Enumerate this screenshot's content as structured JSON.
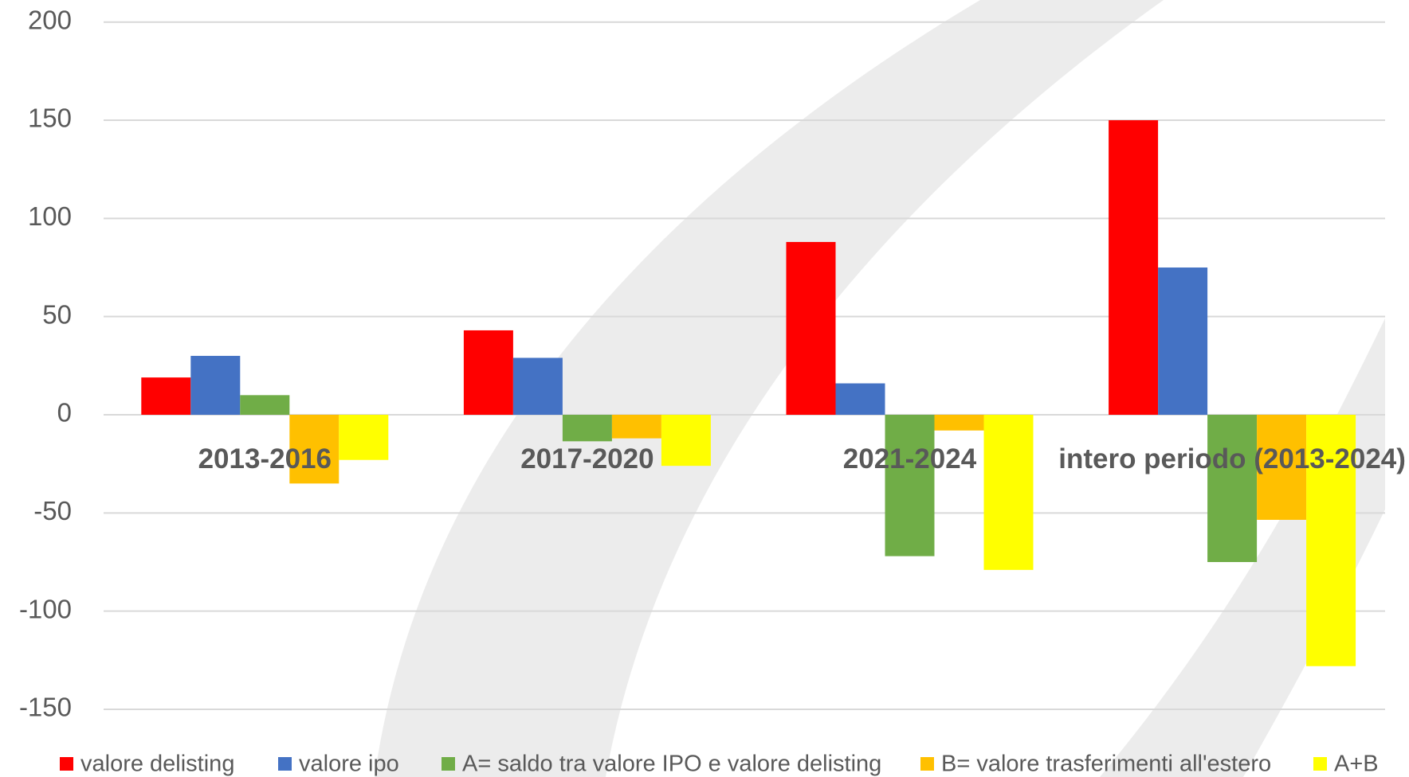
{
  "chart_data": {
    "type": "bar",
    "categories": [
      "2013-2016",
      "2017-2020",
      "2021-2024",
      "intero periodo (2013-2024)"
    ],
    "series": [
      {
        "name": "valore delisting",
        "color": "#ff0000",
        "values": [
          19,
          43,
          88,
          150
        ]
      },
      {
        "name": "valore ipo",
        "color": "#4472c4",
        "values": [
          30,
          29,
          16,
          75
        ]
      },
      {
        "name": "A= saldo tra valore IPO e valore delisting",
        "color": "#70ad47",
        "values": [
          10,
          -13.5,
          -72,
          -75
        ]
      },
      {
        "name": "B= valore trasferimenti all'estero",
        "color": "#ffc000",
        "values": [
          -35,
          -12,
          -8,
          -53.5
        ]
      },
      {
        "name": "A+B",
        "color": "#ffff00",
        "values": [
          -23,
          -26,
          -79,
          -128
        ]
      }
    ],
    "ylim": [
      -150,
      200
    ],
    "yticks": [
      -150,
      -100,
      -50,
      0,
      50,
      100,
      150,
      200
    ],
    "grid": true,
    "legend": "bottom"
  }
}
